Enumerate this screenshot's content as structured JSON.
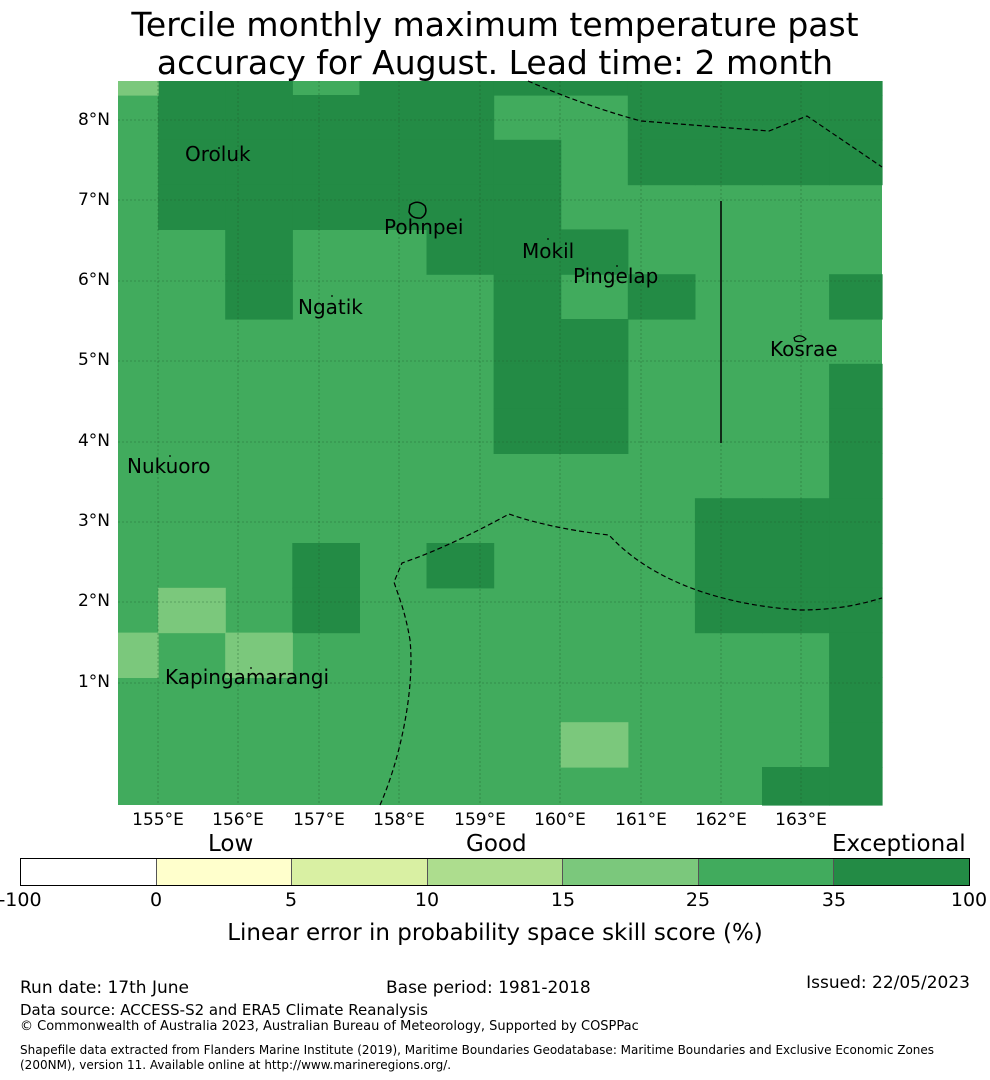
{
  "title": {
    "line1": "Tercile monthly maximum temperature past",
    "line2": "accuracy for August. Lead time: 2 month"
  },
  "map": {
    "lat_ticks": [
      "8°N",
      "7°N",
      "6°N",
      "5°N",
      "4°N",
      "3°N",
      "2°N",
      "1°N"
    ],
    "lon_ticks": [
      "155°E",
      "156°E",
      "157°E",
      "158°E",
      "159°E",
      "160°E",
      "161°E",
      "162°E",
      "163°E"
    ],
    "extent": {
      "lon_min": 154.5,
      "lon_max": 164.0,
      "lat_min": -0.5,
      "lat_max": 8.5
    },
    "cell_size_deg": 0.833,
    "colors": {
      "good": "#7bc87c",
      "very_good": "#41ab5d",
      "exceptional": "#238b45"
    },
    "grid_rows_note": "",
    "grid": [
      "BBBCCCCCCCCCCCCCCCCCCCCCCCCCCC",
      "BCCCCBBBBBBCCCCCCCBB",
      "BCCCCCCCCBBBBCCCCCCB",
      "BBBCCBBCCCCCCBBBCCCB",
      "BBBCBBBBCCCBCCBBBBCB",
      "BBBBBBBBBBBBBCCBBBBB",
      "BBBBBBBBBBBBBBBBBBBB"
    ],
    "places": [
      {
        "name": "Oroluk"
      },
      {
        "name": "Pohnpei"
      },
      {
        "name": "Mokil"
      },
      {
        "name": "Pingelap"
      },
      {
        "name": "Ngatik"
      },
      {
        "name": "Kosrae"
      },
      {
        "name": "Nukuoro"
      },
      {
        "name": "Kapingamarangi"
      }
    ]
  },
  "legend": {
    "categories": [
      "Low",
      "Good",
      "Exceptional"
    ],
    "bounds": [
      "-100",
      "0",
      "5",
      "10",
      "15",
      "25",
      "35",
      "100"
    ],
    "colors": [
      "#ffffff",
      "#ffffcc",
      "#d9f0a3",
      "#addd8e",
      "#7bc87c",
      "#41ab5d",
      "#238b45"
    ],
    "title": "Linear error in probability space skill score (%)"
  },
  "footer": {
    "run_date": "Run date: 17th June",
    "base_period": "Base period: 1981-2018",
    "issued": "Issued: 22/05/2023",
    "data_source": "Data source: ACCESS-S2 and ERA5 Climate Reanalysis",
    "copyright": "© Commonwealth of Australia 2023, Australian Bureau of Meteorology, Supported by COSPPac",
    "shapefile_line1": "Shapefile data extracted from Flanders Marine Institute (2019), Maritime Boundaries Geodatabase: Maritime Boundaries and Exclusive Economic Zones",
    "shapefile_line2": "(200NM), version 11. Available online at http://www.marineregions.org/."
  }
}
